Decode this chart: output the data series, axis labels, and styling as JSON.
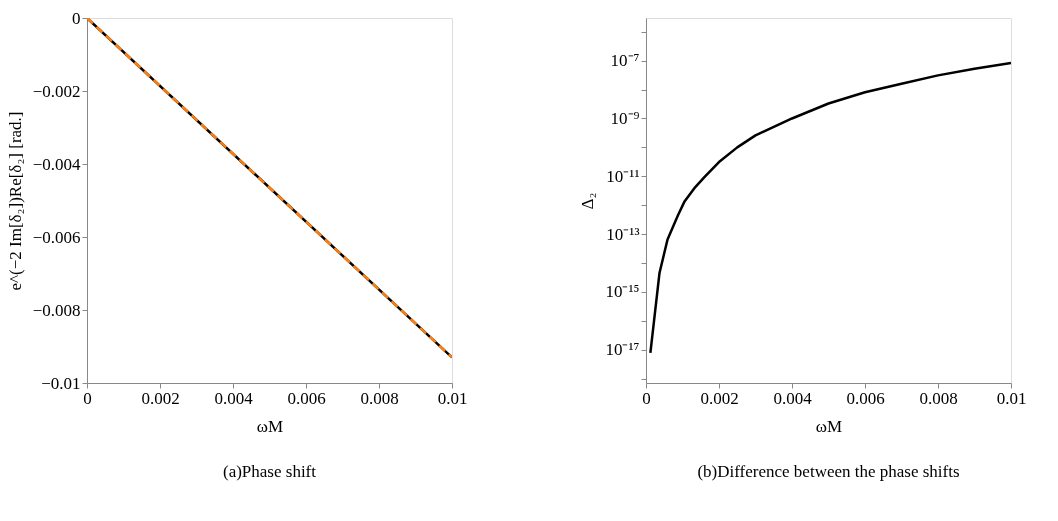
{
  "chart_data": [
    {
      "type": "line",
      "title": "(a)Phase shift",
      "xlabel": "ωM",
      "ylabel": "e^(−2 Im[δ₂])Re[δ₂] [rad.]",
      "xlim": [
        0,
        0.01
      ],
      "xticks": [
        0,
        0.002,
        0.004,
        0.006,
        0.008,
        0.01
      ],
      "ylim": [
        -0.01,
        0
      ],
      "yticks": [
        {
          "value": -0.01,
          "label": "−0.01"
        },
        {
          "value": -0.008,
          "label": "−0.008"
        },
        {
          "value": -0.006,
          "label": "−0.006"
        },
        {
          "value": -0.004,
          "label": "−0.004"
        },
        {
          "value": -0.002,
          "label": "−0.002"
        },
        0
      ],
      "grid": false,
      "marker": "none",
      "series": [
        {
          "color": "#000000",
          "line_style": "solid",
          "x": [
            0,
            0.01
          ],
          "values": [
            0,
            -0.0093
          ]
        },
        {
          "color": "#ff7f0e",
          "line_style": "dashed",
          "x": [
            0,
            0.01
          ],
          "values": [
            0,
            -0.0093
          ]
        }
      ]
    },
    {
      "type": "line",
      "title": "(b)Difference between the phase shifts",
      "xlabel": "ωM",
      "ylabel": "Δ₂",
      "log": "y",
      "xlim": [
        0,
        0.01
      ],
      "xticks": [
        0,
        0.002,
        0.004,
        0.006,
        0.008,
        0.01
      ],
      "ylim": [
        7e-19,
        3e-06
      ],
      "yticks": [
        {
          "value": 1e-18,
          "label": null
        },
        {
          "value": 1e-17,
          "label": "10⁻¹⁷"
        },
        {
          "value": 1e-16,
          "label": null
        },
        {
          "value": 1e-15,
          "label": "10⁻¹⁵"
        },
        {
          "value": 1e-14,
          "label": null
        },
        {
          "value": 1e-13,
          "label": "10⁻¹³"
        },
        {
          "value": 1e-12,
          "label": null
        },
        {
          "value": 1e-11,
          "label": "10⁻¹¹"
        },
        {
          "value": 1e-10,
          "label": null
        },
        {
          "value": 1e-09,
          "label": "10⁻⁹"
        },
        {
          "value": 1e-08,
          "label": null
        },
        {
          "value": 1e-07,
          "label": "10⁻⁷"
        },
        {
          "value": 1e-06,
          "label": null
        }
      ],
      "grid": false,
      "marker": "none",
      "series": [
        {
          "color": "#000000",
          "line_style": "solid",
          "x": [
            0.00012,
            0.00037,
            0.00059,
            0.00087,
            0.00105,
            0.00132,
            0.0016,
            0.002,
            0.0025,
            0.003,
            0.004,
            0.005,
            0.006,
            0.007,
            0.008,
            0.009,
            0.01
          ],
          "values": [
            7.7e-18,
            4.5e-15,
            6.5e-14,
            4.3e-13,
            1.3e-12,
            3.8e-12,
            9.3e-12,
            3.1e-11,
            1e-10,
            2.6e-10,
            1e-09,
            3.3e-09,
            8.1e-09,
            1.6e-08,
            3.1e-08,
            5.3e-08,
            8.3e-08
          ]
        }
      ]
    }
  ]
}
